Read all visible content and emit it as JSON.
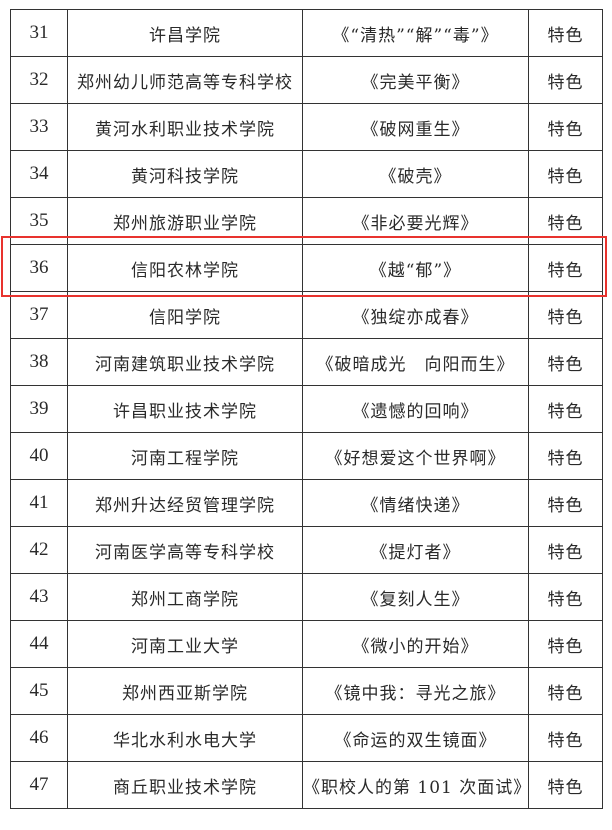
{
  "highlight_color": "#e8332e",
  "rows": [
    {
      "no": "31",
      "school": "许昌学院",
      "title": "《“清热”“解”“毒”》",
      "category": "特色"
    },
    {
      "no": "32",
      "school": "郑州幼儿师范高等专科学校",
      "title": "《完美平衡》",
      "category": "特色"
    },
    {
      "no": "33",
      "school": "黄河水利职业技术学院",
      "title": "《破网重生》",
      "category": "特色"
    },
    {
      "no": "34",
      "school": "黄河科技学院",
      "title": "《破壳》",
      "category": "特色"
    },
    {
      "no": "35",
      "school": "郑州旅游职业学院",
      "title": "《非必要光辉》",
      "category": "特色"
    },
    {
      "no": "36",
      "school": "信阳农林学院",
      "title": "《越“郁”》",
      "category": "特色",
      "highlighted": true
    },
    {
      "no": "37",
      "school": "信阳学院",
      "title": "《独绽亦成春》",
      "category": "特色"
    },
    {
      "no": "38",
      "school": "河南建筑职业技术学院",
      "title": "《破暗成光　向阳而生》",
      "category": "特色"
    },
    {
      "no": "39",
      "school": "许昌职业技术学院",
      "title": "《遗憾的回响》",
      "category": "特色"
    },
    {
      "no": "40",
      "school": "河南工程学院",
      "title": "《好想爱这个世界啊》",
      "category": "特色"
    },
    {
      "no": "41",
      "school": "郑州升达经贸管理学院",
      "title": "《情绪快递》",
      "category": "特色"
    },
    {
      "no": "42",
      "school": "河南医学高等专科学校",
      "title": "《提灯者》",
      "category": "特色"
    },
    {
      "no": "43",
      "school": "郑州工商学院",
      "title": "《复刻人生》",
      "category": "特色"
    },
    {
      "no": "44",
      "school": "河南工业大学",
      "title": "《微小的开始》",
      "category": "特色"
    },
    {
      "no": "45",
      "school": "郑州西亚斯学院",
      "title": "《镜中我：寻光之旅》",
      "category": "特色"
    },
    {
      "no": "46",
      "school": "华北水利水电大学",
      "title": "《命运的双生镜面》",
      "category": "特色"
    },
    {
      "no": "47",
      "school": "商丘职业技术学院",
      "title": "《职校人的第 101 次面试》",
      "category": "特色"
    }
  ]
}
